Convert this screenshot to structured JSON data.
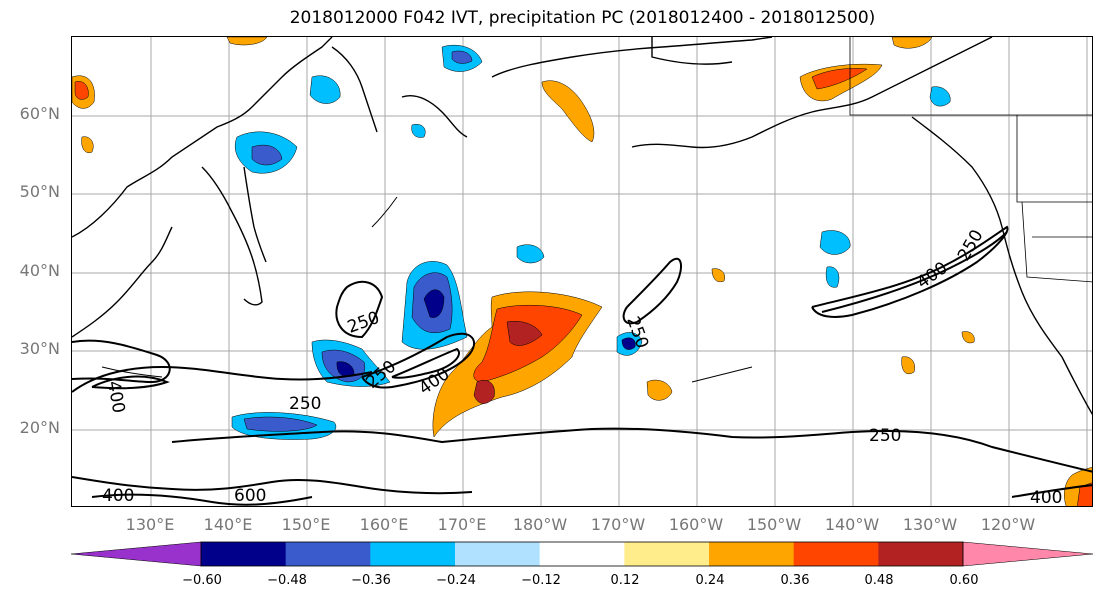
{
  "title": "2018012000 F042 IVT, precipitation PC (2018012400 - 2018012500)",
  "lat_labels": [
    "60°N",
    "50°N",
    "40°N",
    "30°N",
    "20°N"
  ],
  "lon_labels": [
    "130°E",
    "140°E",
    "150°E",
    "160°E",
    "170°E",
    "180°W",
    "170°W",
    "160°W",
    "150°W",
    "140°W",
    "130°W",
    "120°W"
  ],
  "contour_labels": [
    "250",
    "250",
    "250",
    "250",
    "400",
    "400",
    "400",
    "400",
    "250",
    "600",
    "250",
    "400",
    "250"
  ],
  "colorbar": {
    "ticks": [
      "−0.60",
      "−0.48",
      "−0.36",
      "−0.24",
      "−0.12",
      "0.12",
      "0.24",
      "0.36",
      "0.48",
      "0.60"
    ],
    "colors": [
      "#9932CC",
      "#00008B",
      "#3A5BCC",
      "#00BFFF",
      "#B0E2FF",
      "#FFFFFF",
      "#FFEC8B",
      "#FFA500",
      "#FF4500",
      "#B22222",
      "#FF88AA"
    ]
  }
}
